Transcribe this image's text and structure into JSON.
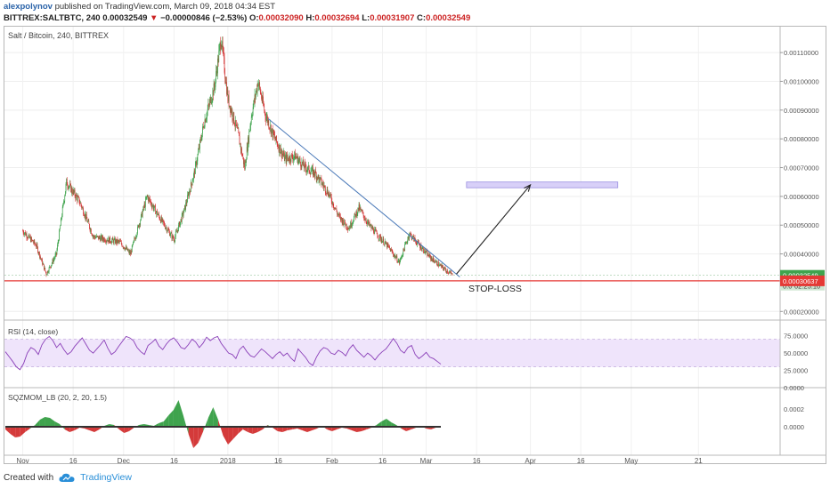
{
  "header": {
    "author": "alexpolynov",
    "published": "published on TradingView.com, March 09, 2018 04:34 EST",
    "symbol": "BITTREX:SALTBTC, 240",
    "last": "0.00032549",
    "change": "−0.00000846 (−2.53%)",
    "o_label": "O:",
    "o": "0.00032090",
    "h_label": "H:",
    "h": "0.00032694",
    "l_label": "L:",
    "l": "0.00031907",
    "c_label": "C:",
    "c": "0.00032549"
  },
  "colors": {
    "up": "#3fa34d",
    "down": "#d43a3a",
    "trendline": "#4a79b8",
    "stop": "#e53935",
    "rsi_line": "#8a3fb8",
    "rsi_band": "#efe4fb",
    "target_zone": "#d8d0f8",
    "price_tag": "#3fa34d",
    "stop_tag": "#e53935",
    "brand": "#2a8fd8"
  },
  "chart_data": [
    {
      "type": "candlestick",
      "title": "Salt / Bitcoin, 240, BITTREX",
      "y_ticks": [
        "0.00110000",
        "0.00100000",
        "0.00090000",
        "0.00080000",
        "0.00070000",
        "0.00060000",
        "0.00050000",
        "0.00040000",
        "0.00020000"
      ],
      "ylim": [
        0.00017,
        0.00119
      ],
      "x_ticks": [
        "Nov",
        "16",
        "Dec",
        "16",
        "2018",
        "16",
        "Feb",
        "16",
        "Mar",
        "16",
        "Apr",
        "16",
        "May",
        "21"
      ],
      "price_path": [
        [
          "2017-11-01",
          0.00048
        ],
        [
          "2017-11-05",
          0.00043
        ],
        [
          "2017-11-08",
          0.00033
        ],
        [
          "2017-11-11",
          0.0004
        ],
        [
          "2017-11-14",
          0.00065
        ],
        [
          "2017-11-18",
          0.00058
        ],
        [
          "2017-11-22",
          0.00046
        ],
        [
          "2017-11-30",
          0.00044
        ],
        [
          "2017-12-03",
          0.0004
        ],
        [
          "2017-12-08",
          0.0006
        ],
        [
          "2017-12-12",
          0.00052
        ],
        [
          "2017-12-16",
          0.00045
        ],
        [
          "2017-12-19",
          0.00055
        ],
        [
          "2017-12-22",
          0.00068
        ],
        [
          "2017-12-25",
          0.00086
        ],
        [
          "2017-12-28",
          0.00098
        ],
        [
          "2017-12-30",
          0.00115
        ],
        [
          "2018-01-01",
          0.00094
        ],
        [
          "2018-01-04",
          0.00082
        ],
        [
          "2018-01-06",
          0.0007
        ],
        [
          "2018-01-08",
          0.00088
        ],
        [
          "2018-01-10",
          0.001
        ],
        [
          "2018-01-12",
          0.00089
        ],
        [
          "2018-01-15",
          0.0008
        ],
        [
          "2018-01-18",
          0.00073
        ],
        [
          "2018-01-21",
          0.00074
        ],
        [
          "2018-01-24",
          0.0007
        ],
        [
          "2018-01-27",
          0.00068
        ],
        [
          "2018-01-31",
          0.00061
        ],
        [
          "2018-02-03",
          0.00053
        ],
        [
          "2018-02-06",
          0.00049
        ],
        [
          "2018-02-09",
          0.00056
        ],
        [
          "2018-02-12",
          0.0005
        ],
        [
          "2018-02-15",
          0.00046
        ],
        [
          "2018-02-18",
          0.00042
        ],
        [
          "2018-02-21",
          0.00037
        ],
        [
          "2018-02-24",
          0.00047
        ],
        [
          "2018-02-27",
          0.00043
        ],
        [
          "2018-03-02",
          0.00039
        ],
        [
          "2018-03-05",
          0.00036
        ],
        [
          "2018-03-09",
          0.00032549
        ]
      ],
      "annotations": {
        "trendline": [
          [
            "2018-01-13",
            0.00087
          ],
          [
            "2018-03-11",
            0.00032
          ]
        ],
        "stop_loss_level": 0.00030637,
        "stop_loss_label": "STOP-LOSS",
        "target_zone": {
          "x0": "2018-03-13",
          "x1": "2018-04-27",
          "y0": 0.00063,
          "y1": 0.00065
        },
        "arrow": [
          [
            "2018-03-10",
            0.00033
          ],
          [
            "2018-04-01",
            0.00064
          ]
        ]
      },
      "last_price_label": "0.00032549",
      "countdown_label": "02:25:10",
      "stop_price_label": "0.00030637",
      "partial_label": "0.0"
    },
    {
      "type": "line",
      "title": "RSI (14, close)",
      "y_ticks": [
        "75.0000",
        "50.0000",
        "25.0000",
        "0.0000"
      ],
      "ylim": [
        0,
        90
      ],
      "band": [
        30,
        70
      ],
      "values": [
        52,
        45,
        38,
        30,
        26,
        35,
        50,
        58,
        55,
        48,
        62,
        70,
        74,
        68,
        58,
        64,
        55,
        48,
        52,
        60,
        66,
        72,
        63,
        54,
        50,
        56,
        62,
        69,
        57,
        48,
        52,
        60,
        67,
        74,
        72,
        68,
        58,
        52,
        48,
        61,
        65,
        70,
        60,
        55,
        63,
        69,
        72,
        66,
        58,
        56,
        62,
        70,
        66,
        58,
        64,
        73,
        68,
        72,
        74,
        64,
        57,
        50,
        48,
        42,
        55,
        60,
        52,
        46,
        44,
        50,
        56,
        52,
        47,
        42,
        48,
        52,
        46,
        50,
        43,
        38,
        56,
        50,
        44,
        36,
        32,
        44,
        53,
        58,
        56,
        50,
        48,
        54,
        51,
        46,
        56,
        62,
        54,
        49,
        44,
        50,
        46,
        40,
        47,
        52,
        56,
        63,
        71,
        64,
        54,
        50,
        58,
        61,
        48,
        42,
        46,
        51,
        44,
        42,
        38,
        34
      ]
    },
    {
      "type": "histogram",
      "title": "SQZMOM_LB (20, 2, 20, 1.5)",
      "y_ticks": [
        "0.0002",
        "0.0000"
      ],
      "ylim": [
        -0.00032,
        0.00042
      ],
      "values": [
        -3e-05,
        -8e-05,
        -0.00012,
        -0.00011,
        -6e-05,
        -2e-05,
        2e-05,
        8e-05,
        0.00011,
        0.0001,
        6e-05,
        3e-05,
        -3e-05,
        -6e-05,
        -4e-05,
        -1e-05,
        -2e-05,
        -4e-05,
        -6e-05,
        -3e-05,
        1e-05,
        3e-05,
        2e-05,
        -3e-05,
        -7e-05,
        -5e-05,
        -1e-05,
        2e-05,
        3e-05,
        2e-05,
        1e-05,
        4e-05,
        6e-05,
        0.00013,
        0.00019,
        0.0003,
        0.00012,
        -8e-05,
        -0.00024,
        -0.00018,
        -5e-05,
        0.0001,
        0.00022,
        8e-05,
        -0.0001,
        -0.0002,
        -0.00014,
        -8e-05,
        -3e-05,
        -6e-05,
        -8e-05,
        -6e-05,
        -3e-05,
        2e-05,
        -1e-05,
        -5e-05,
        -6e-05,
        -4e-05,
        -3e-05,
        -2e-05,
        -4e-05,
        -6e-05,
        -4e-05,
        -2e-05,
        1e-05,
        -3e-05,
        -5e-05,
        -3e-05,
        -1e-05,
        -2e-05,
        -4e-05,
        -6e-05,
        -5e-05,
        -3e-05,
        -1e-05,
        2e-05,
        6e-05,
        9e-05,
        5e-05,
        2e-05,
        -2e-05,
        -5e-05,
        -3e-05,
        -1e-05,
        1e-05,
        -2e-05,
        -3e-05,
        -1e-05,
        -1e-05
      ]
    }
  ],
  "footer": {
    "created_with": "Created with",
    "brand": "TradingView"
  }
}
